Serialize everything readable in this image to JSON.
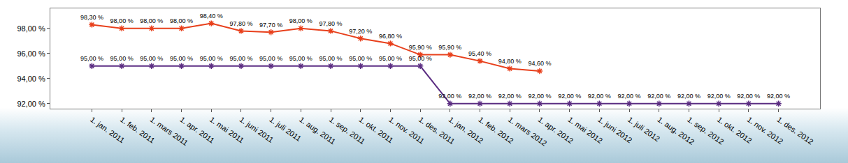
{
  "chart_data": {
    "type": "line",
    "categories": [
      "1. jan. 2011",
      "1. feb. 2011",
      "1. mars 2011",
      "1. apr. 2011",
      "1. mai 2011",
      "1. juni 2011",
      "1. juli 2011",
      "1. aug. 2011",
      "1. sep. 2011",
      "1. okt. 2011",
      "1. nov. 2011",
      "1. des. 2011",
      "1. jan. 2012",
      "1. feb. 2012",
      "1. mars 2012",
      "1. apr. 2012",
      "1. mai 2012",
      "1. juni 2012",
      "1. juli 2012",
      "1. aug. 2012",
      "1. sep. 2012",
      "1. okt. 2012",
      "1. nov. 2012",
      "1. des. 2012"
    ],
    "series": [
      {
        "color": "#e8401c",
        "marker": "asterisk",
        "line_style": "solid",
        "values": [
          98.3,
          98.0,
          98.0,
          98.0,
          98.4,
          97.8,
          97.7,
          98.0,
          97.8,
          97.2,
          96.8,
          95.9,
          95.9,
          95.4,
          94.8,
          94.6,
          null,
          null,
          null,
          null,
          null,
          null,
          null,
          null
        ],
        "value_labels": [
          "98,30 %",
          "98,00 %",
          "98,00 %",
          "98,00 %",
          "98,40 %",
          "97,80 %",
          "97,70 %",
          "98,00 %",
          "97,80 %",
          "97,20 %",
          "96,80 %",
          "95,90 %",
          "95,90 %",
          "95,40 %",
          "94,80 %",
          "94,60 %",
          null,
          null,
          null,
          null,
          null,
          null,
          null,
          null
        ]
      },
      {
        "color": "#5b2d82",
        "marker": "asterisk",
        "line_style": "solid",
        "values": [
          95.0,
          95.0,
          95.0,
          95.0,
          95.0,
          95.0,
          95.0,
          95.0,
          95.0,
          95.0,
          95.0,
          95.0,
          92.0,
          92.0,
          92.0,
          92.0,
          92.0,
          92.0,
          92.0,
          92.0,
          92.0,
          92.0,
          92.0,
          92.0
        ],
        "value_labels": [
          "95,00 %",
          "95,00 %",
          "95,00 %",
          "95,00 %",
          "95,00 %",
          "95,00 %",
          "95,00 %",
          "95,00 %",
          "95,00 %",
          "95,00 %",
          "95,00 %",
          "95,00 %",
          "92,00 %",
          "92,00 %",
          "92,00 %",
          "92,00 %",
          "92,00 %",
          "92,00 %",
          "92,00 %",
          "92,00 %",
          "92,00 %",
          "92,00 %",
          "92,00 %",
          "92,00 %"
        ]
      }
    ],
    "ylim": [
      91.6,
      99.6
    ],
    "yticks": [
      {
        "value": 92,
        "label": "92,00 %"
      },
      {
        "value": 94,
        "label": "94,00 %"
      },
      {
        "value": 96,
        "label": "96,00 %"
      },
      {
        "value": 98,
        "label": "98,00 %"
      }
    ],
    "grid": false,
    "data_labels": true
  }
}
